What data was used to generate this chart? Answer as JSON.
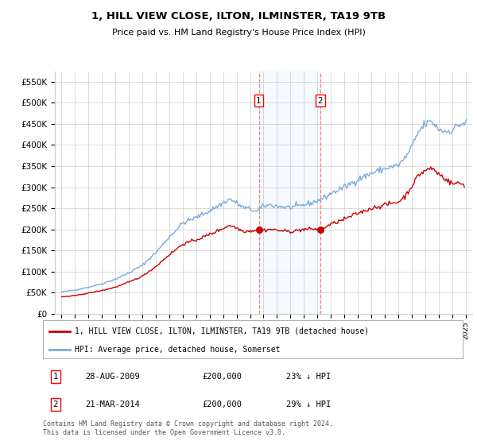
{
  "title": "1, HILL VIEW CLOSE, ILTON, ILMINSTER, TA19 9TB",
  "subtitle": "Price paid vs. HM Land Registry's House Price Index (HPI)",
  "background_color": "#ffffff",
  "grid_color": "#cccccc",
  "hpi_color": "#7aaadd",
  "price_color": "#cc0000",
  "sale1_date": "28-AUG-2009",
  "sale1_price": 200000,
  "sale1_hpi_pct": "23% ↓ HPI",
  "sale1_x": 2009.65,
  "sale2_date": "21-MAR-2014",
  "sale2_price": 200000,
  "sale2_hpi_pct": "29% ↓ HPI",
  "sale2_x": 2014.21,
  "legend_label1": "1, HILL VIEW CLOSE, ILTON, ILMINSTER, TA19 9TB (detached house)",
  "legend_label2": "HPI: Average price, detached house, Somerset",
  "footnote": "Contains HM Land Registry data © Crown copyright and database right 2024.\nThis data is licensed under the Open Government Licence v3.0.",
  "ylim": [
    0,
    575000
  ],
  "yticks": [
    0,
    50000,
    100000,
    150000,
    200000,
    250000,
    300000,
    350000,
    400000,
    450000,
    500000,
    550000
  ],
  "ytick_labels": [
    "£0",
    "£50K",
    "£100K",
    "£150K",
    "£200K",
    "£250K",
    "£300K",
    "£350K",
    "£400K",
    "£450K",
    "£500K",
    "£550K"
  ],
  "xlim_left": 1994.5,
  "xlim_right": 2025.5
}
